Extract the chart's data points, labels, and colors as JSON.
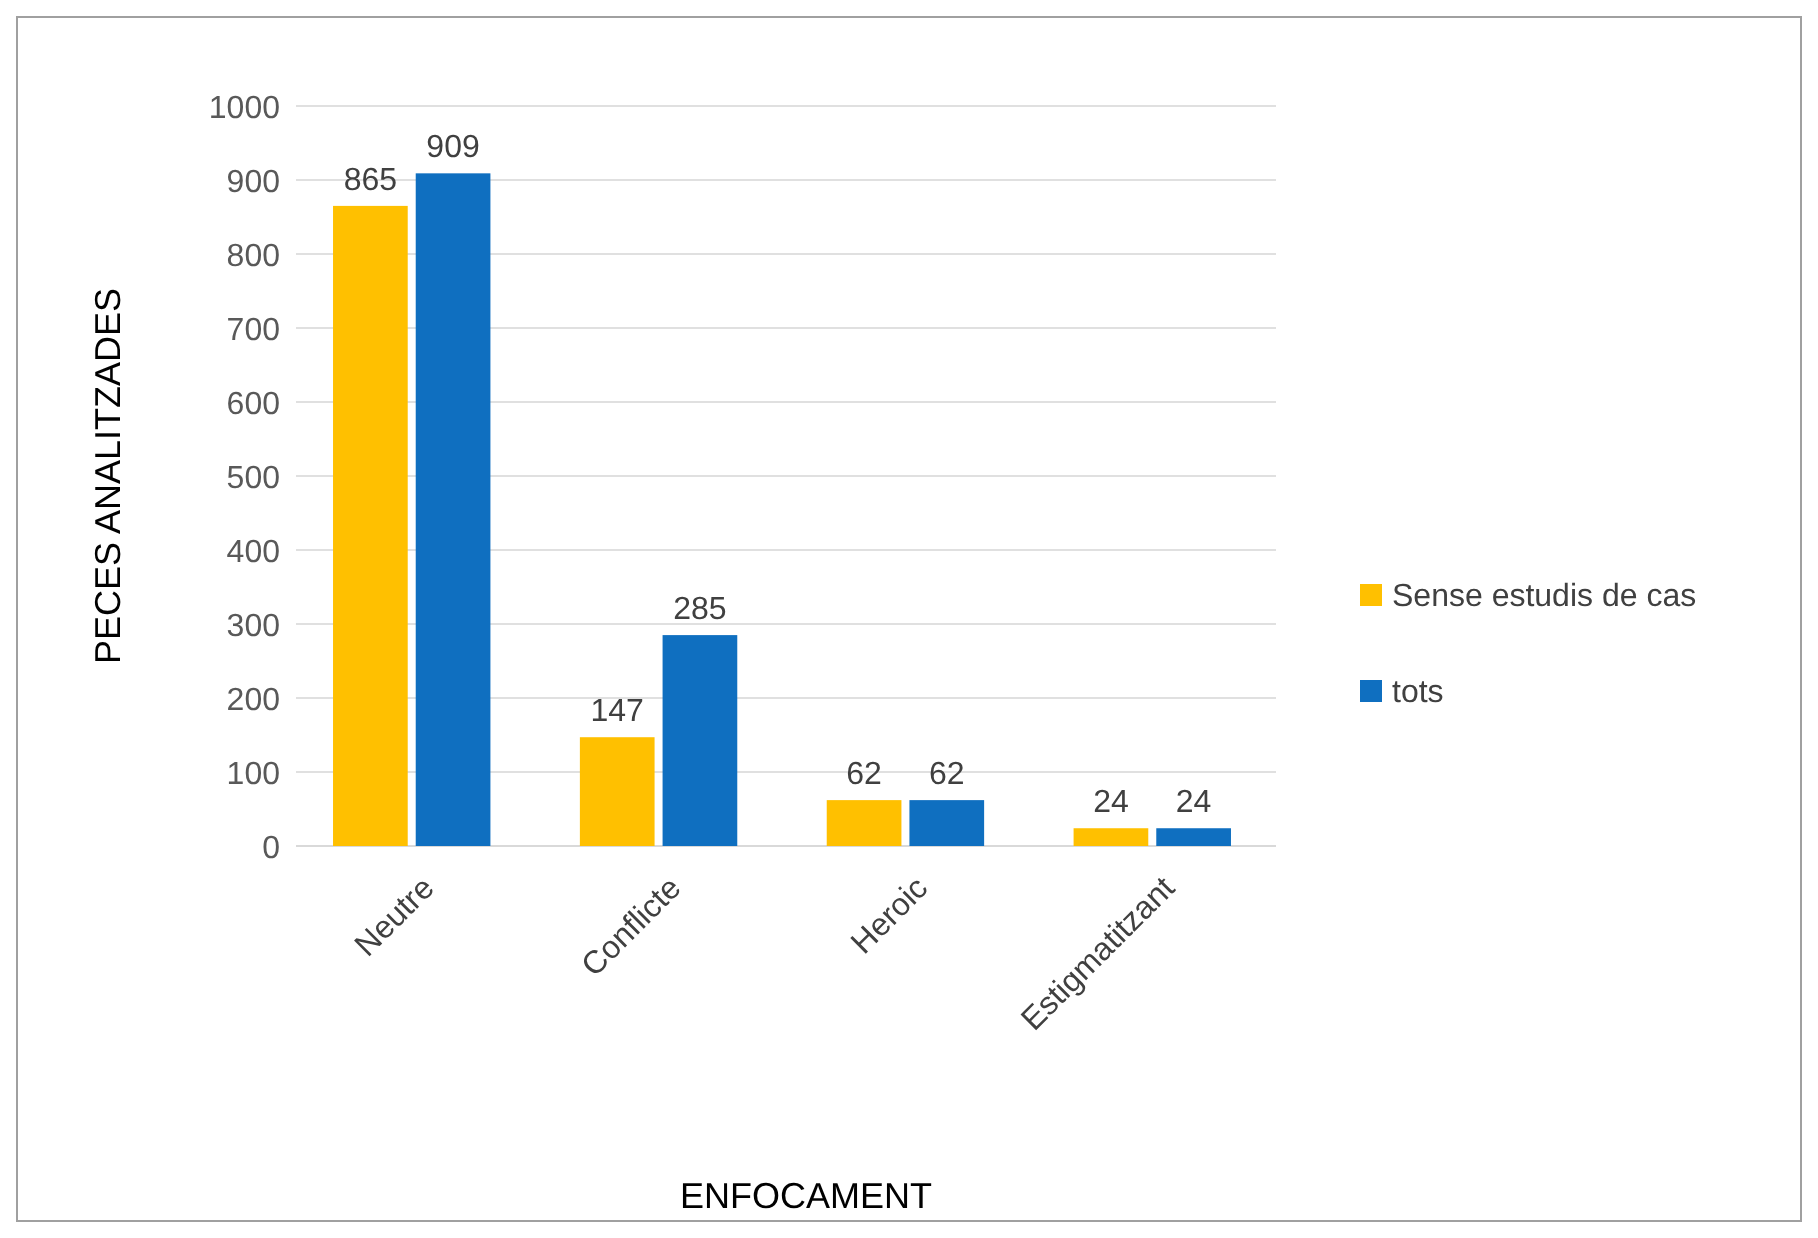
{
  "chart_data": {
    "type": "bar",
    "xlabel": "ENFOCAMENT",
    "ylabel": "PECES ANALITZADES",
    "categories": [
      "Neutre",
      "Conflicte",
      "Heroic",
      "Estigmatitzant"
    ],
    "series": [
      {
        "name": "Sense estudis de cas",
        "color": "#ffc000",
        "values": [
          865,
          147,
          62,
          24
        ]
      },
      {
        "name": "tots",
        "color": "#0f6fc0",
        "values": [
          909,
          285,
          62,
          24
        ]
      }
    ],
    "ylim": [
      0,
      1000
    ],
    "yticks": [
      0,
      100,
      200,
      300,
      400,
      500,
      600,
      700,
      800,
      900,
      1000
    ],
    "grid": "y",
    "legend": "right",
    "data_labels": true
  }
}
